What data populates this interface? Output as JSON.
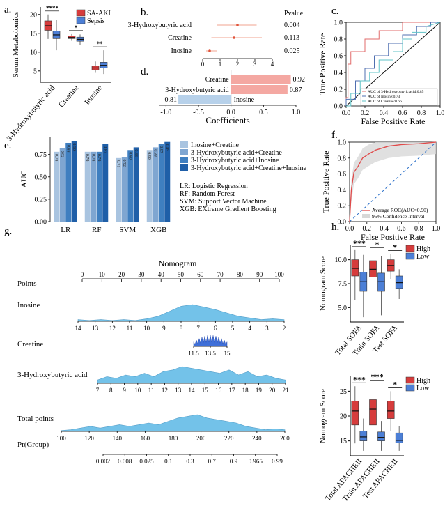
{
  "figure": {
    "panel_labels": [
      "a.",
      "b.",
      "c.",
      "d.",
      "e.",
      "f.",
      "g.",
      "h."
    ]
  },
  "chart_data": [
    {
      "panel": "a",
      "type": "box",
      "ylabel": "Serum Metabolomics",
      "categories": [
        "3-Hydroxybutyric acid",
        "Creatine",
        "Inosine"
      ],
      "legend": [
        "SA-AKI",
        "Sepsis"
      ],
      "colors": [
        "#d63c3c",
        "#4c7fd6"
      ],
      "ylim": [
        2,
        22
      ],
      "yticks": [
        5,
        10,
        15,
        20
      ],
      "significance": [
        "****",
        "*",
        "**"
      ],
      "groups": [
        {
          "name": "SA-AKI",
          "boxes": [
            {
              "q1": 15.8,
              "med": 17.0,
              "q3": 18.3,
              "lo": 13.5,
              "hi": 20.0
            },
            {
              "q1": 13.6,
              "med": 13.9,
              "q3": 14.3,
              "lo": 13.0,
              "hi": 14.8
            },
            {
              "q1": 5.3,
              "med": 5.8,
              "q3": 6.3,
              "lo": 4.5,
              "hi": 7.5
            }
          ]
        },
        {
          "name": "Sepsis",
          "boxes": [
            {
              "q1": 13.6,
              "med": 14.6,
              "q3": 15.6,
              "lo": 10.5,
              "hi": 18.5
            },
            {
              "q1": 12.9,
              "med": 13.4,
              "q3": 14.0,
              "lo": 12.0,
              "hi": 14.7
            },
            {
              "q1": 5.8,
              "med": 6.5,
              "q3": 7.3,
              "lo": 4.2,
              "hi": 10.5
            }
          ]
        }
      ]
    },
    {
      "panel": "b",
      "type": "forest",
      "header": "Pvalue",
      "rows": [
        {
          "label": "3-Hydroxybutyric acid",
          "est": 2.0,
          "lo": 0.8,
          "hi": 3.1,
          "pvalue": "0.004"
        },
        {
          "label": "Creatine",
          "est": 1.8,
          "lo": 0.5,
          "hi": 3.4,
          "pvalue": "0.113"
        },
        {
          "label": "Inosine",
          "est": 0.4,
          "lo": 0.2,
          "hi": 0.8,
          "pvalue": "0.025"
        }
      ],
      "xlim": [
        0,
        4
      ],
      "xticks": [
        "0",
        "1",
        "2",
        "3",
        "4"
      ]
    },
    {
      "panel": "c",
      "type": "line",
      "xlabel": "False Positive Rate",
      "ylabel": "True Positive Rate",
      "ticks": [
        "0.0",
        "0.2",
        "0.4",
        "0.6",
        "0.8",
        "1.0"
      ],
      "series": [
        {
          "name": "AUC of 3-Hydroxybutyric acid:0.85",
          "color": "#e26b6b",
          "points": [
            [
              0,
              0
            ],
            [
              0,
              0.1
            ],
            [
              0.02,
              0.1
            ],
            [
              0.02,
              0.5
            ],
            [
              0.05,
              0.5
            ],
            [
              0.05,
              0.65
            ],
            [
              0.2,
              0.65
            ],
            [
              0.2,
              0.8
            ],
            [
              0.35,
              0.8
            ],
            [
              0.35,
              0.9
            ],
            [
              0.6,
              0.9
            ],
            [
              0.6,
              1
            ],
            [
              1,
              1
            ]
          ]
        },
        {
          "name": "AUC of Inosine:0.73",
          "color": "#4f6fb0",
          "points": [
            [
              0,
              0
            ],
            [
              0,
              0.08
            ],
            [
              0.1,
              0.08
            ],
            [
              0.1,
              0.3
            ],
            [
              0.2,
              0.3
            ],
            [
              0.2,
              0.45
            ],
            [
              0.3,
              0.45
            ],
            [
              0.3,
              0.6
            ],
            [
              0.45,
              0.6
            ],
            [
              0.45,
              0.75
            ],
            [
              0.6,
              0.75
            ],
            [
              0.6,
              0.85
            ],
            [
              0.75,
              0.85
            ],
            [
              0.75,
              0.95
            ],
            [
              0.9,
              0.95
            ],
            [
              0.9,
              1
            ],
            [
              1,
              1
            ]
          ]
        },
        {
          "name": "AUC of Creatine:0.66",
          "color": "#5fc3c7",
          "points": [
            [
              0,
              0
            ],
            [
              0.05,
              0
            ],
            [
              0.05,
              0.15
            ],
            [
              0.15,
              0.15
            ],
            [
              0.15,
              0.3
            ],
            [
              0.25,
              0.3
            ],
            [
              0.25,
              0.4
            ],
            [
              0.35,
              0.4
            ],
            [
              0.35,
              0.55
            ],
            [
              0.5,
              0.55
            ],
            [
              0.5,
              0.65
            ],
            [
              0.6,
              0.65
            ],
            [
              0.6,
              0.8
            ],
            [
              0.7,
              0.8
            ],
            [
              0.7,
              0.88
            ],
            [
              0.85,
              0.88
            ],
            [
              0.85,
              0.95
            ],
            [
              1,
              1
            ]
          ]
        }
      ]
    },
    {
      "panel": "d",
      "type": "bar",
      "xlabel": "Coefficients",
      "categories": [
        "Creatine",
        "3-Hydroxybutyric acid",
        "Inosine"
      ],
      "values": [
        0.92,
        0.87,
        -0.81
      ],
      "value_labels": [
        "0.92",
        "0.87",
        "-0.81"
      ],
      "xlim": [
        -1.1,
        1.0
      ],
      "xticks": [
        "-1.0",
        "-0.5",
        "0.0",
        "0.5",
        "1.0"
      ],
      "colors": [
        "#f4a8a2",
        "#f4a8a2",
        "#b7d1ea"
      ]
    },
    {
      "panel": "e",
      "type": "bar",
      "ylabel": "AUC",
      "categories": [
        "LR",
        "RF",
        "SVM",
        "XGB"
      ],
      "yticks": [
        "0.00",
        "0.25",
        "0.50",
        "0.75"
      ],
      "ylim": [
        0,
        0.95
      ],
      "series": [
        {
          "name": "Inosine+Creatine",
          "color": "#a9c4e0",
          "values": [
            0.78,
            0.78,
            0.71,
            0.8
          ],
          "labels": [
            "0.78",
            "0.78",
            "0.71",
            "0.80"
          ]
        },
        {
          "name": "3-Hydroxybutyric acid+Creatine",
          "color": "#7fa6d1",
          "values": [
            0.82,
            0.78,
            0.72,
            0.83
          ],
          "labels": [
            "0.82",
            "0.78",
            "0.72",
            "0.83"
          ]
        },
        {
          "name": "3-Hydroxybutyric acid+Inosine",
          "color": "#3f7fc0",
          "values": [
            0.88,
            0.78,
            0.8,
            0.87
          ],
          "labels": [
            "0.88",
            "0.78",
            "0.80",
            "0.87"
          ]
        },
        {
          "name": "3-Hydroxybutyric acid+Creatine+Inosine",
          "color": "#1f5fa8",
          "values": [
            0.9,
            0.87,
            0.83,
            0.89
          ],
          "labels": [
            "0.90",
            "0.87",
            "0.83",
            "0.89"
          ]
        }
      ],
      "abbreviations": [
        "LR:  Logistic Regression",
        "RF:  Random Forest",
        "SVM:  Support Vector Machine",
        "XGB:  EXtreme Gradient Boosting"
      ]
    },
    {
      "panel": "f",
      "type": "line",
      "xlabel": "False Positive Rate",
      "ylabel": "True Positive Rate",
      "ticks": [
        "0.0",
        "0.2",
        "0.4",
        "0.6",
        "0.8",
        "1.0"
      ],
      "legend": [
        "Average ROC(AUC=0.90)",
        "95% Confidence Interval"
      ],
      "points": [
        [
          0,
          0
        ],
        [
          0.02,
          0.4
        ],
        [
          0.05,
          0.62
        ],
        [
          0.1,
          0.7
        ],
        [
          0.15,
          0.8
        ],
        [
          0.22,
          0.85
        ],
        [
          0.3,
          0.9
        ],
        [
          0.45,
          0.95
        ],
        [
          0.6,
          0.97
        ],
        [
          0.8,
          0.98
        ],
        [
          1,
          1
        ]
      ]
    },
    {
      "panel": "g",
      "type": "nomogram",
      "title": "Nomogram",
      "rows": [
        {
          "label": "Points",
          "ticks": [
            "0",
            "10",
            "20",
            "30",
            "40",
            "50",
            "60",
            "70",
            "80",
            "90",
            "100"
          ]
        },
        {
          "label": "Inosine",
          "ticks": [
            "14",
            "13",
            "12",
            "11",
            "10",
            "9",
            "8",
            "7",
            "6",
            "5",
            "4",
            "3",
            "2"
          ]
        },
        {
          "label": "Creatine",
          "ticks": [
            "11.5",
            "13.5",
            "15"
          ]
        },
        {
          "label": "3-Hydroxybutyric acid",
          "ticks": [
            "7",
            "8",
            "9",
            "10",
            "11",
            "12",
            "13",
            "14",
            "15",
            "16",
            "17",
            "18",
            "19",
            "20",
            "21"
          ]
        },
        {
          "label": "Total points",
          "ticks": [
            "100",
            "120",
            "140",
            "160",
            "180",
            "200",
            "220",
            "240",
            "260"
          ]
        },
        {
          "label": "Pr(Group)",
          "ticks": [
            "0.002",
            "0.008",
            "0.025",
            "0.1",
            "0.3",
            "0.7",
            "0.9",
            "0.965",
            "0.99"
          ]
        }
      ]
    },
    {
      "panel": "h-top",
      "type": "box",
      "ylabel": "Nomogram Score",
      "categories": [
        "Total SOFA",
        "Train SOFA",
        "Test SOFA"
      ],
      "legend": [
        "High",
        "Low"
      ],
      "colors": [
        "#d63c3c",
        "#4c7fd6"
      ],
      "yticks": [
        "5.0",
        "7.5",
        "10.0"
      ],
      "ylim": [
        3.5,
        11.5
      ],
      "significance": [
        "***",
        "*",
        "*"
      ],
      "groups": [
        {
          "name": "High",
          "boxes": [
            {
              "q1": 8.3,
              "med": 9.1,
              "q3": 10.0,
              "lo": 5.8,
              "hi": 11.0
            },
            {
              "q1": 8.2,
              "med": 9.0,
              "q3": 9.9,
              "lo": 6.5,
              "hi": 10.9
            },
            {
              "q1": 8.8,
              "med": 9.4,
              "q3": 10.0,
              "lo": 8.0,
              "hi": 10.6
            }
          ]
        },
        {
          "name": "Low",
          "boxes": [
            {
              "q1": 6.7,
              "med": 7.7,
              "q3": 8.7,
              "lo": 4.0,
              "hi": 10.5
            },
            {
              "q1": 6.7,
              "med": 7.7,
              "q3": 8.6,
              "lo": 4.2,
              "hi": 10.4
            },
            {
              "q1": 7.0,
              "med": 7.6,
              "q3": 8.3,
              "lo": 5.9,
              "hi": 9.0
            }
          ]
        }
      ]
    },
    {
      "panel": "h-bottom",
      "type": "box",
      "ylabel": "Nomogram Score",
      "categories": [
        "Total APACHEII",
        "Train APACHEII",
        "Test APACHEII"
      ],
      "legend": [
        "High",
        "Low"
      ],
      "colors": [
        "#d63c3c",
        "#4c7fd6"
      ],
      "yticks": [
        "15",
        "20",
        "25"
      ],
      "ylim": [
        12,
        28
      ],
      "significance": [
        "***",
        "***",
        "*"
      ],
      "groups": [
        {
          "name": "High",
          "boxes": [
            {
              "q1": 18.2,
              "med": 21.0,
              "q3": 23.0,
              "lo": 14.5,
              "hi": 26.0
            },
            {
              "q1": 18.2,
              "med": 21.4,
              "q3": 23.3,
              "lo": 14.5,
              "hi": 26.5
            },
            {
              "q1": 19.5,
              "med": 21.0,
              "q3": 23.0,
              "lo": 17.0,
              "hi": 25.0
            }
          ]
        },
        {
          "name": "Low",
          "boxes": [
            {
              "q1": 15.0,
              "med": 15.8,
              "q3": 17.0,
              "lo": 13.0,
              "hi": 19.5
            },
            {
              "q1": 15.0,
              "med": 15.7,
              "q3": 16.8,
              "lo": 13.0,
              "hi": 19.0
            },
            {
              "q1": 14.6,
              "med": 15.1,
              "q3": 16.6,
              "lo": 13.0,
              "hi": 18.0
            }
          ]
        }
      ]
    }
  ]
}
